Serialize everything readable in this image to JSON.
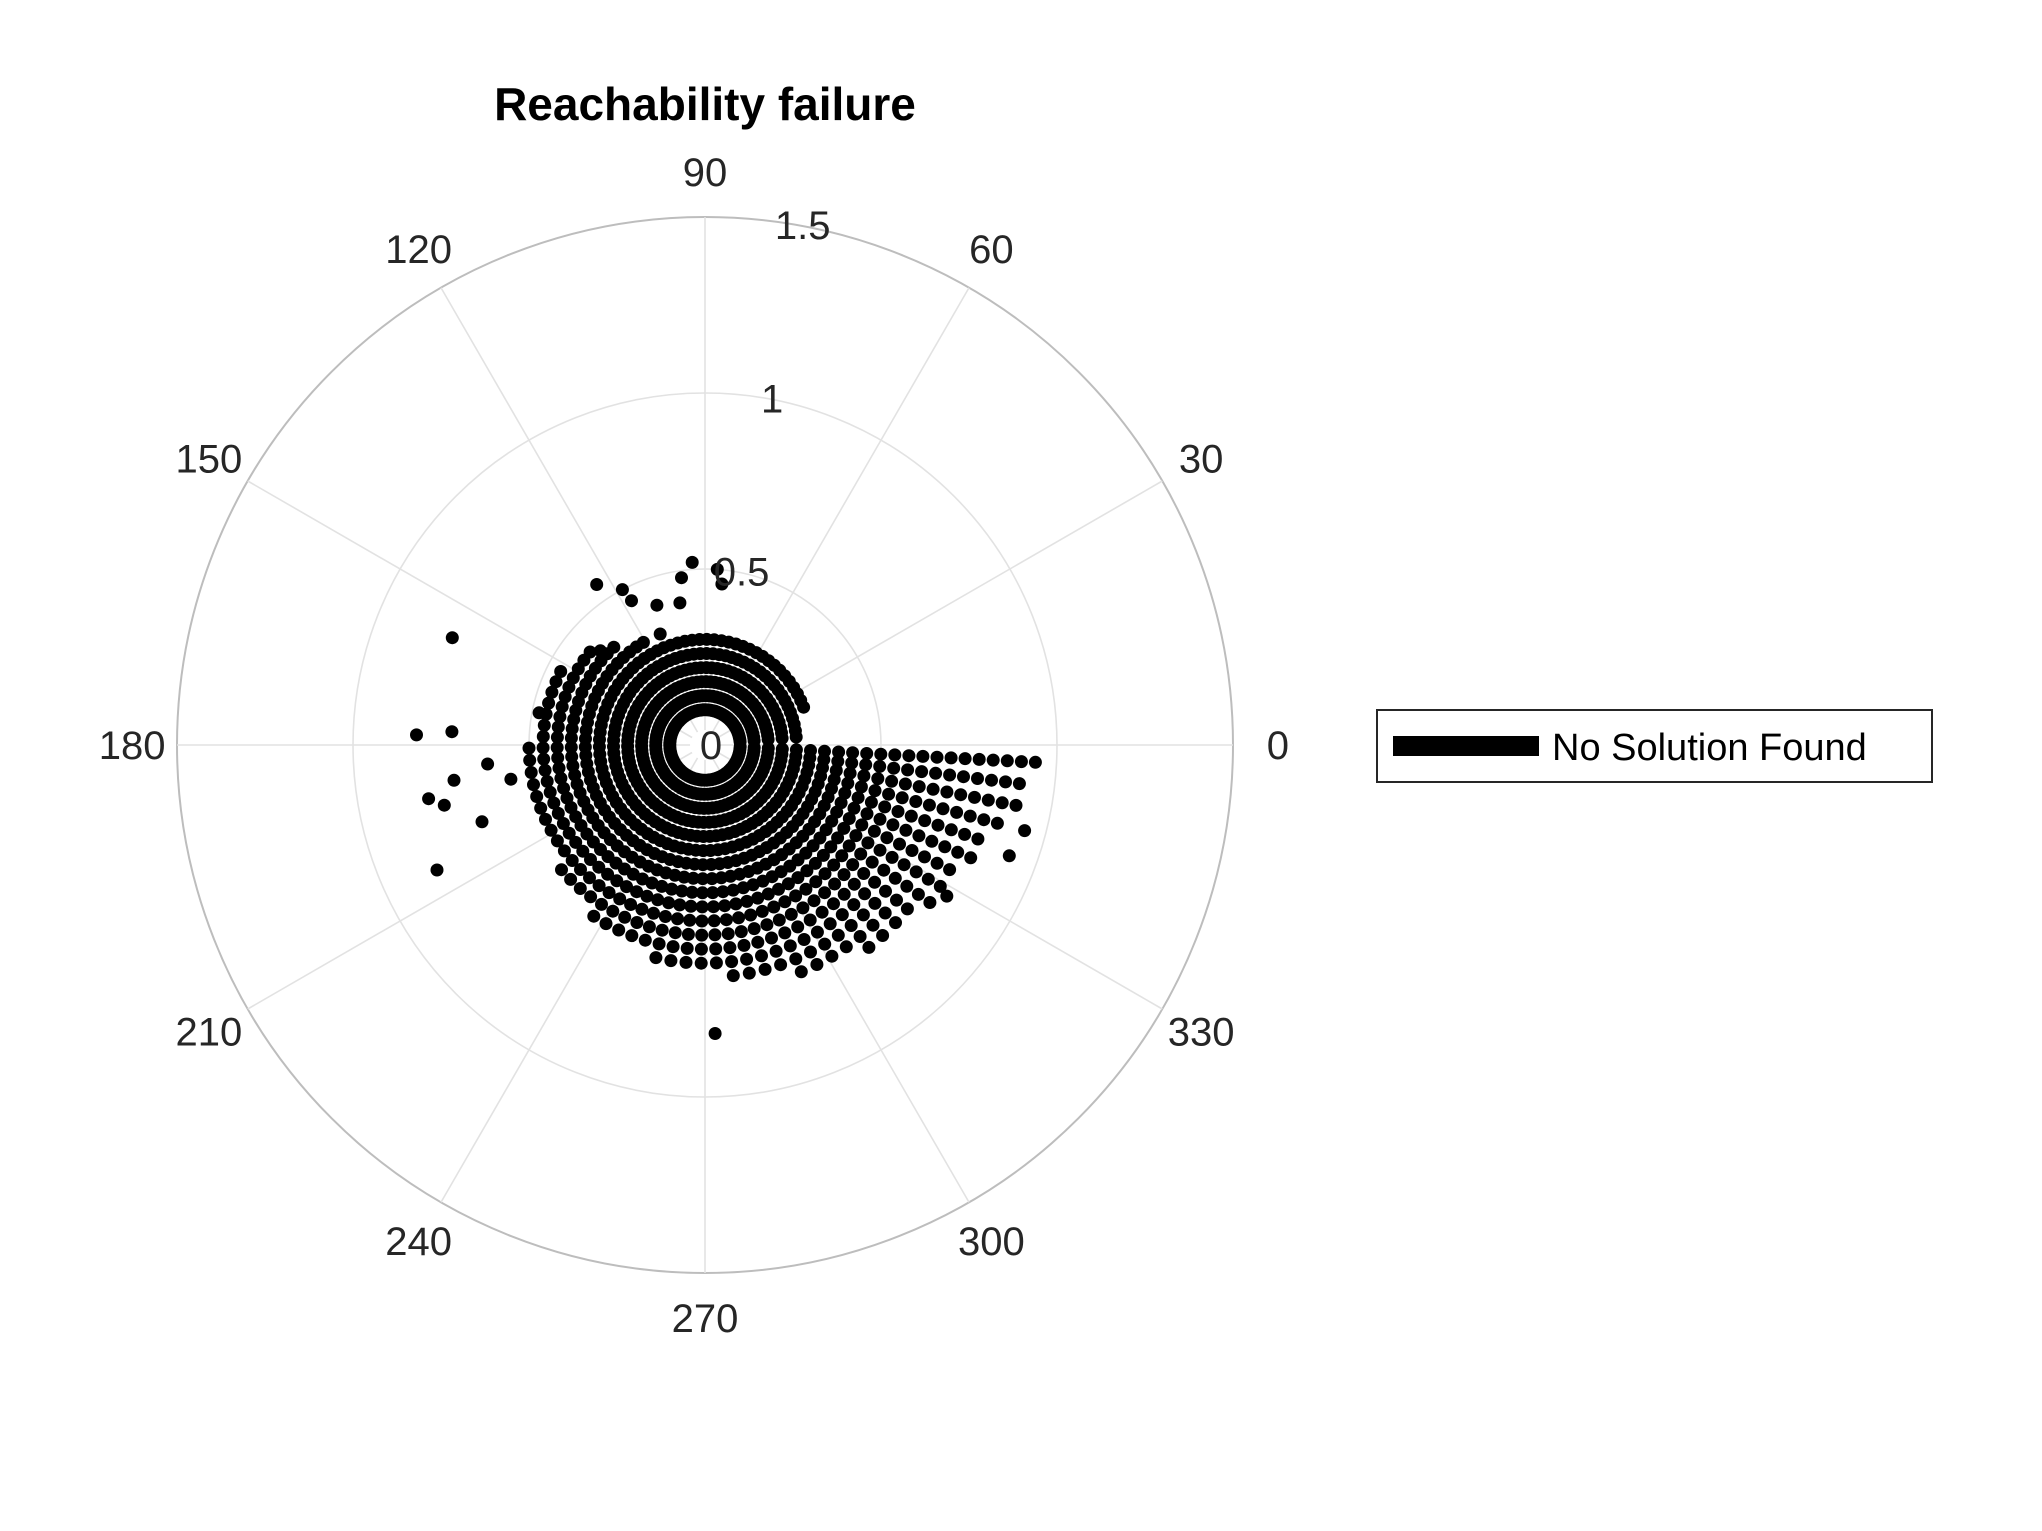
{
  "chart_data": {
    "type": "scatter",
    "coordinate_system": "polar",
    "title": "Reachability failure",
    "theta_unit": "degrees",
    "theta_ticks": [
      0,
      30,
      60,
      90,
      120,
      150,
      180,
      210,
      240,
      270,
      300,
      330
    ],
    "theta_tick_labels": [
      "0",
      "30",
      "60",
      "90",
      "120",
      "150",
      "180",
      "210",
      "240",
      "270",
      "300",
      "330"
    ],
    "r_ticks": [
      0,
      0.5,
      1,
      1.5
    ],
    "r_tick_labels": [
      "0",
      "0.5",
      "1",
      "1.5"
    ],
    "r_label_angle": 80,
    "rlim": [
      0,
      1.5
    ],
    "grid": true,
    "legend_position": "right",
    "legend": [
      "No Solution Found"
    ],
    "series": [
      {
        "name": "No Solution Found",
        "color": "#000000",
        "marker": "dot",
        "dense_region": {
          "description_free": true,
          "theta_range": [
            5,
            360
          ],
          "r_step": 0.04,
          "theta_step": 4,
          "r_min": 0.1,
          "r_max_profile": [
            [
              5,
              0.28
            ],
            [
              20,
              0.3
            ],
            [
              40,
              0.3
            ],
            [
              55,
              0.3
            ],
            [
              70,
              0.32
            ],
            [
              90,
              0.3
            ],
            [
              105,
              0.3
            ],
            [
              120,
              0.34
            ],
            [
              135,
              0.4
            ],
            [
              150,
              0.46
            ],
            [
              165,
              0.48
            ],
            [
              180,
              0.5
            ],
            [
              195,
              0.52
            ],
            [
              210,
              0.53
            ],
            [
              225,
              0.55
            ],
            [
              240,
              0.6
            ],
            [
              255,
              0.62
            ],
            [
              270,
              0.65
            ],
            [
              285,
              0.68
            ],
            [
              300,
              0.72
            ],
            [
              315,
              0.76
            ],
            [
              330,
              0.8
            ],
            [
              345,
              0.88
            ],
            [
              360,
              0.96
            ]
          ]
        },
        "outliers": [
          {
            "theta": 124,
            "r": 0.55
          },
          {
            "theta": 118,
            "r": 0.5
          },
          {
            "theta": 117,
            "r": 0.46
          },
          {
            "theta": 109,
            "r": 0.42
          },
          {
            "theta": 86,
            "r": 0.5
          },
          {
            "theta": 84,
            "r": 0.46
          },
          {
            "theta": 94,
            "r": 0.52
          },
          {
            "theta": 98,
            "r": 0.48
          },
          {
            "theta": 100,
            "r": 0.41
          },
          {
            "theta": 112,
            "r": 0.34
          },
          {
            "theta": 138,
            "r": 0.4
          },
          {
            "theta": 157,
            "r": 0.78
          },
          {
            "theta": 169,
            "r": 0.48
          },
          {
            "theta": 178,
            "r": 0.82
          },
          {
            "theta": 177,
            "r": 0.72
          },
          {
            "theta": 185,
            "r": 0.62
          },
          {
            "theta": 188,
            "r": 0.72
          },
          {
            "theta": 190,
            "r": 0.56
          },
          {
            "theta": 191,
            "r": 0.8
          },
          {
            "theta": 193,
            "r": 0.76
          },
          {
            "theta": 199,
            "r": 0.67
          },
          {
            "theta": 205,
            "r": 0.84
          },
          {
            "theta": 272,
            "r": 0.82
          },
          {
            "theta": 328,
            "r": 0.81
          },
          {
            "theta": 340,
            "r": 0.92
          },
          {
            "theta": 345,
            "r": 0.94
          }
        ]
      }
    ]
  }
}
